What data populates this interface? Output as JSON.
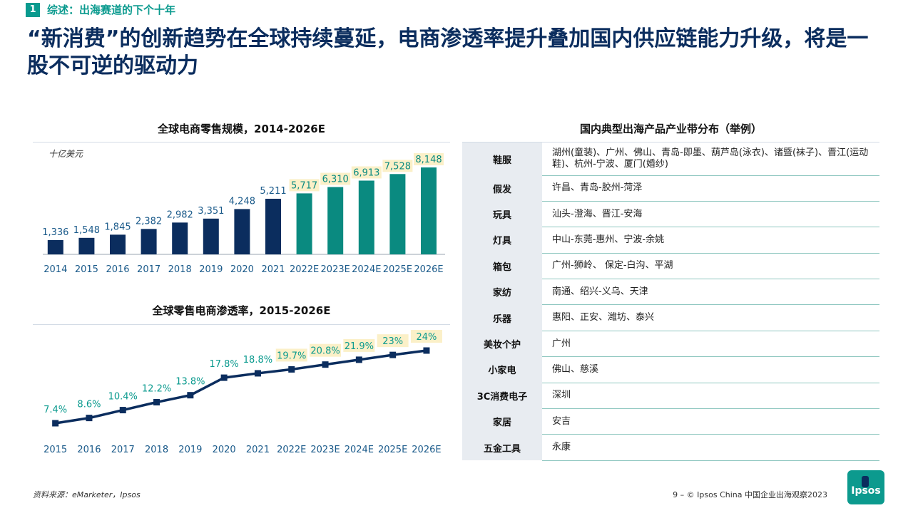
{
  "section": {
    "number": "1",
    "title": "综述：出海赛道的下个十年"
  },
  "headline": "“新消费”的创新趋势在全球持续蔓延，电商渗透率提升叠加国内供应链能力升级，将是一股不可逆的驱动力",
  "chart_data": [
    {
      "type": "bar",
      "title": "全球电商零售规模，2014-2026E",
      "unit": "十亿美元",
      "categories": [
        "2014",
        "2015",
        "2016",
        "2017",
        "2018",
        "2019",
        "2020",
        "2021",
        "2022E",
        "2023E",
        "2024E",
        "2025E",
        "2026E"
      ],
      "values": [
        1336,
        1548,
        1845,
        2382,
        2982,
        3351,
        4248,
        5211,
        5717,
        6310,
        6913,
        7528,
        8148
      ],
      "labels": [
        "1,336",
        "1,548",
        "1,845",
        "2,382",
        "2,982",
        "3,351",
        "4,248",
        "5,211",
        "5,717",
        "6,310",
        "6,913",
        "7,528",
        "8,148"
      ],
      "forecast_start_index": 8,
      "colors": {
        "actual": "#0b2d5e",
        "forecast": "#0a8a80",
        "label_highlight": "#fbf0c8"
      }
    },
    {
      "type": "line",
      "title": "全球零售电商渗透率，2015-2026E",
      "categories": [
        "2015",
        "2016",
        "2017",
        "2018",
        "2019",
        "2020",
        "2021",
        "2022E",
        "2023E",
        "2024E",
        "2025E",
        "2026E"
      ],
      "values": [
        7.4,
        8.6,
        10.4,
        12.2,
        13.8,
        17.8,
        18.8,
        19.7,
        20.8,
        21.9,
        23,
        24
      ],
      "labels": [
        "7.4%",
        "8.6%",
        "10.4%",
        "12.2%",
        "13.8%",
        "17.8%",
        "18.8%",
        "19.7%",
        "20.8%",
        "21.9%",
        "23%",
        "24%"
      ],
      "forecast_start_index": 7,
      "colors": {
        "line": "#0b2d5e",
        "label": "#0a9a8e",
        "label_highlight": "#fbf0c8"
      }
    }
  ],
  "table": {
    "title": "国内典型出海产品产业带分布（举例）",
    "rows": [
      {
        "category": "鞋服",
        "regions": "湖州(童装)、广州、佛山、青岛-即墨、葫芦岛(泳衣)、诸暨(袜子)、晋江(运动鞋)、杭州-宁波、厦门(婚纱)"
      },
      {
        "category": "假发",
        "regions": "许昌、青岛-胶州-菏泽"
      },
      {
        "category": "玩具",
        "regions": "汕头-澄海、晋江-安海"
      },
      {
        "category": "灯具",
        "regions": "中山-东莞-惠州、宁波-余姚"
      },
      {
        "category": "箱包",
        "regions": "广州-狮岭、 保定-白沟、平湖"
      },
      {
        "category": "家纺",
        "regions": "南通、绍兴-义乌、天津"
      },
      {
        "category": "乐器",
        "regions": "惠阳、正安、潍坊、泰兴"
      },
      {
        "category": "美妆个护",
        "regions": "广州"
      },
      {
        "category": "小家电",
        "regions": "佛山、慈溪"
      },
      {
        "category": "3C消费电子",
        "regions": "深圳"
      },
      {
        "category": "家居",
        "regions": "安吉"
      },
      {
        "category": "五金工具",
        "regions": "永康"
      }
    ]
  },
  "footer": {
    "source": "资料来源：eMarketer，Ipsos",
    "page": "9 – © Ipsos China 中国企业出海观察2023",
    "logo": "Ipsos"
  }
}
